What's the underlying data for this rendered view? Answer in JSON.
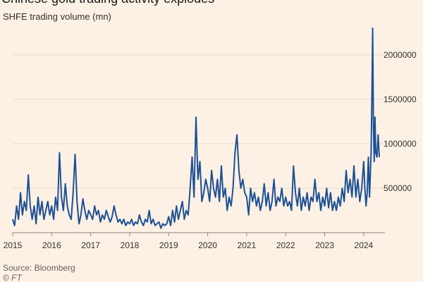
{
  "title": "Chinese gold trading activity explodes",
  "subtitle": "SHFE trading volume (mn)",
  "source": "Source: Bloomberg",
  "credit": "© FT",
  "colors": {
    "background": "#fdf1e5",
    "series": "#1e5094",
    "grid": "#e8dccf",
    "axis": "#8a847d"
  },
  "chart_data": {
    "type": "line",
    "title": "Chinese gold trading activity explodes",
    "subtitle": "SHFE trading volume (mn)",
    "xlabel": "",
    "ylabel": "",
    "xlim": [
      2015.0,
      2024.4
    ],
    "ylim": [
      0,
      2300000
    ],
    "grid": true,
    "y_axis_position": "right",
    "y_ticks": [
      500000,
      1000000,
      1500000,
      2000000
    ],
    "y_tick_labels": [
      "500000",
      "1000000",
      "1500000",
      "2000000"
    ],
    "x_ticks": [
      2015,
      2016,
      2017,
      2018,
      2019,
      2020,
      2021,
      2022,
      2023,
      2024
    ],
    "x_tick_labels": [
      "2015",
      "2016",
      "2017",
      "2018",
      "2019",
      "2020",
      "2021",
      "2022",
      "2023",
      "2024"
    ],
    "series": [
      {
        "name": "",
        "x": [
          2015.0,
          2015.05,
          2015.1,
          2015.15,
          2015.2,
          2015.25,
          2015.3,
          2015.35,
          2015.4,
          2015.45,
          2015.5,
          2015.55,
          2015.6,
          2015.65,
          2015.7,
          2015.75,
          2015.8,
          2015.85,
          2015.9,
          2015.95,
          2016.0,
          2016.05,
          2016.1,
          2016.15,
          2016.2,
          2016.25,
          2016.3,
          2016.35,
          2016.4,
          2016.45,
          2016.5,
          2016.55,
          2016.6,
          2016.65,
          2016.7,
          2016.75,
          2016.8,
          2016.85,
          2016.9,
          2016.95,
          2017.0,
          2017.05,
          2017.1,
          2017.15,
          2017.2,
          2017.25,
          2017.3,
          2017.35,
          2017.4,
          2017.45,
          2017.5,
          2017.55,
          2017.6,
          2017.65,
          2017.7,
          2017.75,
          2017.8,
          2017.85,
          2017.9,
          2017.95,
          2018.0,
          2018.05,
          2018.1,
          2018.15,
          2018.2,
          2018.25,
          2018.3,
          2018.35,
          2018.4,
          2018.45,
          2018.5,
          2018.55,
          2018.6,
          2018.65,
          2018.7,
          2018.75,
          2018.8,
          2018.85,
          2018.9,
          2018.95,
          2019.0,
          2019.05,
          2019.1,
          2019.15,
          2019.2,
          2019.25,
          2019.3,
          2019.35,
          2019.4,
          2019.45,
          2019.5,
          2019.55,
          2019.6,
          2019.65,
          2019.7,
          2019.75,
          2019.8,
          2019.85,
          2019.9,
          2019.95,
          2020.0,
          2020.05,
          2020.1,
          2020.15,
          2020.2,
          2020.25,
          2020.3,
          2020.35,
          2020.4,
          2020.45,
          2020.5,
          2020.55,
          2020.6,
          2020.65,
          2020.7,
          2020.75,
          2020.8,
          2020.85,
          2020.9,
          2020.95,
          2021.0,
          2021.05,
          2021.1,
          2021.15,
          2021.2,
          2021.25,
          2021.3,
          2021.35,
          2021.4,
          2021.45,
          2021.5,
          2021.55,
          2021.6,
          2021.65,
          2021.7,
          2021.75,
          2021.8,
          2021.85,
          2021.9,
          2021.95,
          2022.0,
          2022.05,
          2022.1,
          2022.15,
          2022.2,
          2022.25,
          2022.3,
          2022.35,
          2022.4,
          2022.45,
          2022.5,
          2022.55,
          2022.6,
          2022.65,
          2022.7,
          2022.75,
          2022.8,
          2022.85,
          2022.9,
          2022.95,
          2023.0,
          2023.05,
          2023.1,
          2023.15,
          2023.2,
          2023.25,
          2023.3,
          2023.35,
          2023.4,
          2023.45,
          2023.5,
          2023.55,
          2023.6,
          2023.65,
          2023.7,
          2023.75,
          2023.8,
          2023.85,
          2023.9,
          2023.95,
          2024.0,
          2024.03,
          2024.06,
          2024.09,
          2024.12,
          2024.15,
          2024.17,
          2024.19,
          2024.21,
          2024.23,
          2024.25,
          2024.27,
          2024.29,
          2024.31,
          2024.34,
          2024.37,
          2024.4
        ],
        "values": [
          150000,
          80000,
          300000,
          150000,
          450000,
          200000,
          350000,
          250000,
          650000,
          300000,
          150000,
          300000,
          100000,
          400000,
          200000,
          350000,
          150000,
          250000,
          350000,
          200000,
          300000,
          150000,
          400000,
          250000,
          900000,
          400000,
          250000,
          550000,
          300000,
          200000,
          150000,
          450000,
          880000,
          350000,
          100000,
          200000,
          380000,
          250000,
          150000,
          250000,
          200000,
          150000,
          300000,
          200000,
          250000,
          120000,
          200000,
          150000,
          250000,
          180000,
          120000,
          180000,
          300000,
          200000,
          120000,
          150000,
          100000,
          150000,
          80000,
          120000,
          100000,
          150000,
          80000,
          120000,
          100000,
          200000,
          120000,
          80000,
          150000,
          120000,
          250000,
          100000,
          150000,
          80000,
          100000,
          120000,
          50000,
          100000,
          80000,
          100000,
          180000,
          80000,
          250000,
          120000,
          300000,
          150000,
          250000,
          350000,
          150000,
          250000,
          200000,
          500000,
          850000,
          400000,
          1300000,
          600000,
          800000,
          350000,
          450000,
          600000,
          500000,
          350000,
          700000,
          500000,
          400000,
          600000,
          350000,
          750000,
          400000,
          500000,
          250000,
          400000,
          300000,
          500000,
          900000,
          1100000,
          700000,
          500000,
          600000,
          450000,
          400000,
          200000,
          500000,
          350000,
          450000,
          300000,
          400000,
          250000,
          350000,
          550000,
          300000,
          450000,
          250000,
          350000,
          600000,
          300000,
          400000,
          350000,
          500000,
          300000,
          400000,
          300000,
          350000,
          250000,
          750000,
          450000,
          300000,
          500000,
          250000,
          400000,
          300000,
          450000,
          250000,
          400000,
          350000,
          600000,
          350000,
          450000,
          250000,
          400000,
          300000,
          500000,
          280000,
          450000,
          250000,
          350000,
          250000,
          400000,
          300000,
          500000,
          350000,
          700000,
          450000,
          600000,
          400000,
          750000,
          400000,
          600000,
          350000,
          500000,
          800000,
          500000,
          300000,
          450000,
          850000,
          400000,
          650000,
          900000,
          1500000,
          2300000,
          1200000,
          800000,
          1300000,
          900000,
          850000,
          1100000,
          850000
        ]
      }
    ]
  }
}
